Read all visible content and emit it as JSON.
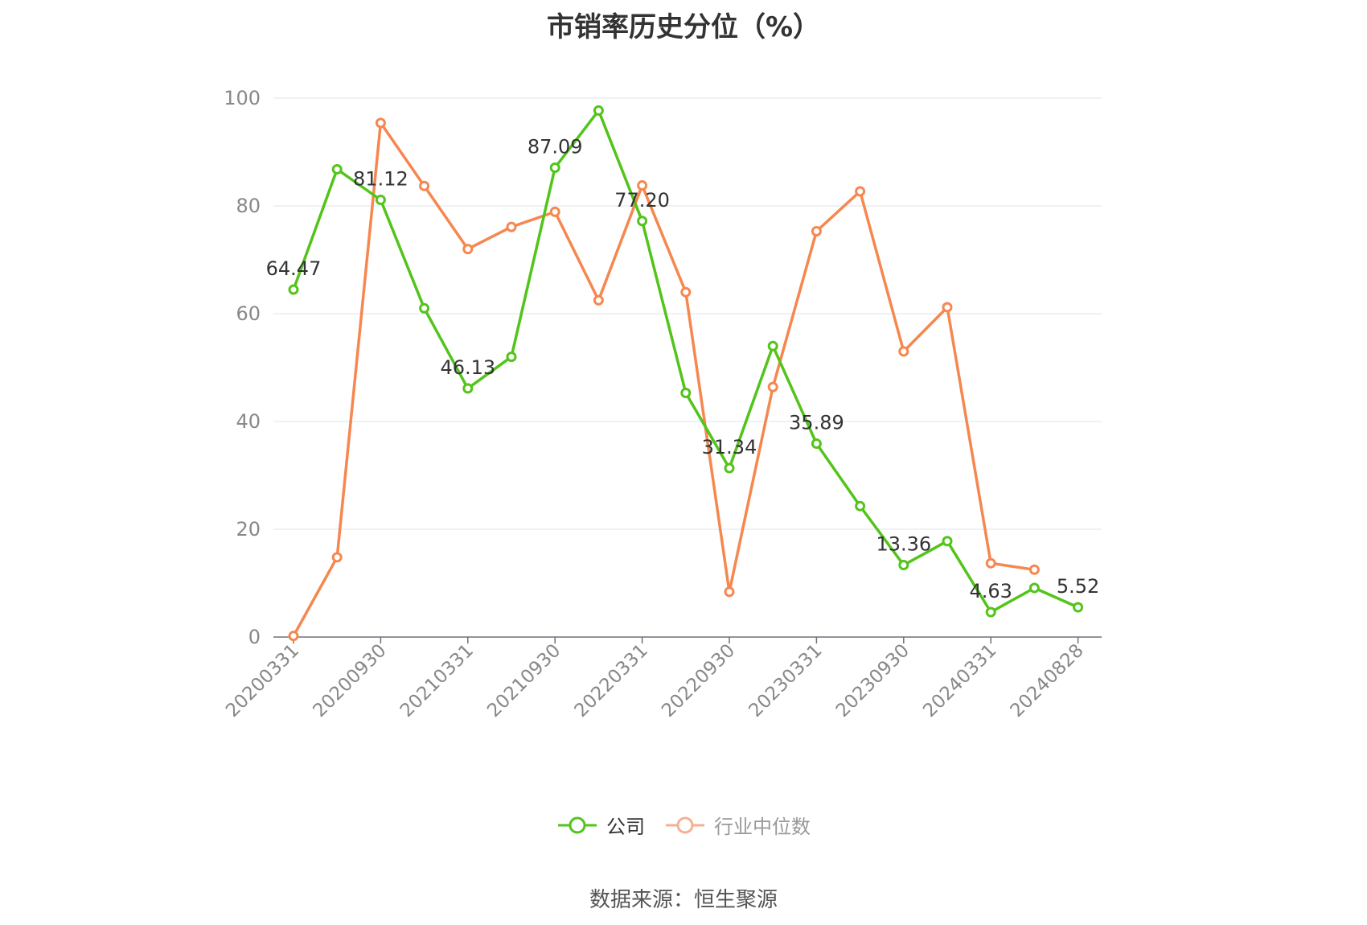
{
  "chart_data": {
    "type": "line",
    "title": "市销率历史分位（%）",
    "ylim": [
      0,
      100
    ],
    "yticks": [
      0,
      20,
      40,
      60,
      80,
      100
    ],
    "x": [
      "20200331",
      "20200630",
      "20200930",
      "20201231",
      "20210331",
      "20210630",
      "20210930",
      "20211231",
      "20220331",
      "20220630",
      "20220930",
      "20221231",
      "20230331",
      "20230630",
      "20230930",
      "20231231",
      "20240331",
      "20240630",
      "20240828"
    ],
    "xtick_labels": [
      "20200331",
      "20200930",
      "20210331",
      "20210930",
      "20220331",
      "20220930",
      "20230331",
      "20230930",
      "20240331",
      "20240828"
    ],
    "grid": true,
    "legend_position": "bottom",
    "series": [
      {
        "name": "公司",
        "color": "#52c41a",
        "values": [
          64.47,
          86.8,
          81.12,
          61.0,
          46.13,
          52.0,
          87.09,
          97.7,
          77.2,
          45.3,
          31.34,
          54.0,
          35.89,
          24.3,
          13.36,
          17.8,
          4.63,
          9.1,
          5.52
        ],
        "labeled_points": [
          {
            "index": 0,
            "label": "64.47"
          },
          {
            "index": 2,
            "label": "81.12"
          },
          {
            "index": 4,
            "label": "46.13"
          },
          {
            "index": 6,
            "label": "87.09"
          },
          {
            "index": 8,
            "label": "77.20"
          },
          {
            "index": 10,
            "label": "31.34"
          },
          {
            "index": 12,
            "label": "35.89"
          },
          {
            "index": 14,
            "label": "13.36"
          },
          {
            "index": 16,
            "label": "4.63"
          },
          {
            "index": 18,
            "label": "5.52"
          }
        ]
      },
      {
        "name": "行业中位数",
        "color": "#f5874f",
        "values": [
          0.2,
          14.8,
          95.4,
          83.7,
          72.0,
          76.1,
          78.9,
          62.5,
          83.8,
          64.0,
          8.4,
          46.4,
          75.3,
          82.7,
          53.0,
          61.2,
          13.7,
          12.5,
          null
        ]
      }
    ]
  },
  "legend": [
    {
      "label": "公司",
      "color": "#52c41a",
      "text_color": "#333333"
    },
    {
      "label": "行业中位数",
      "color": "#f5b093",
      "text_color": "#999999"
    }
  ],
  "source": "数据来源：恒生聚源"
}
